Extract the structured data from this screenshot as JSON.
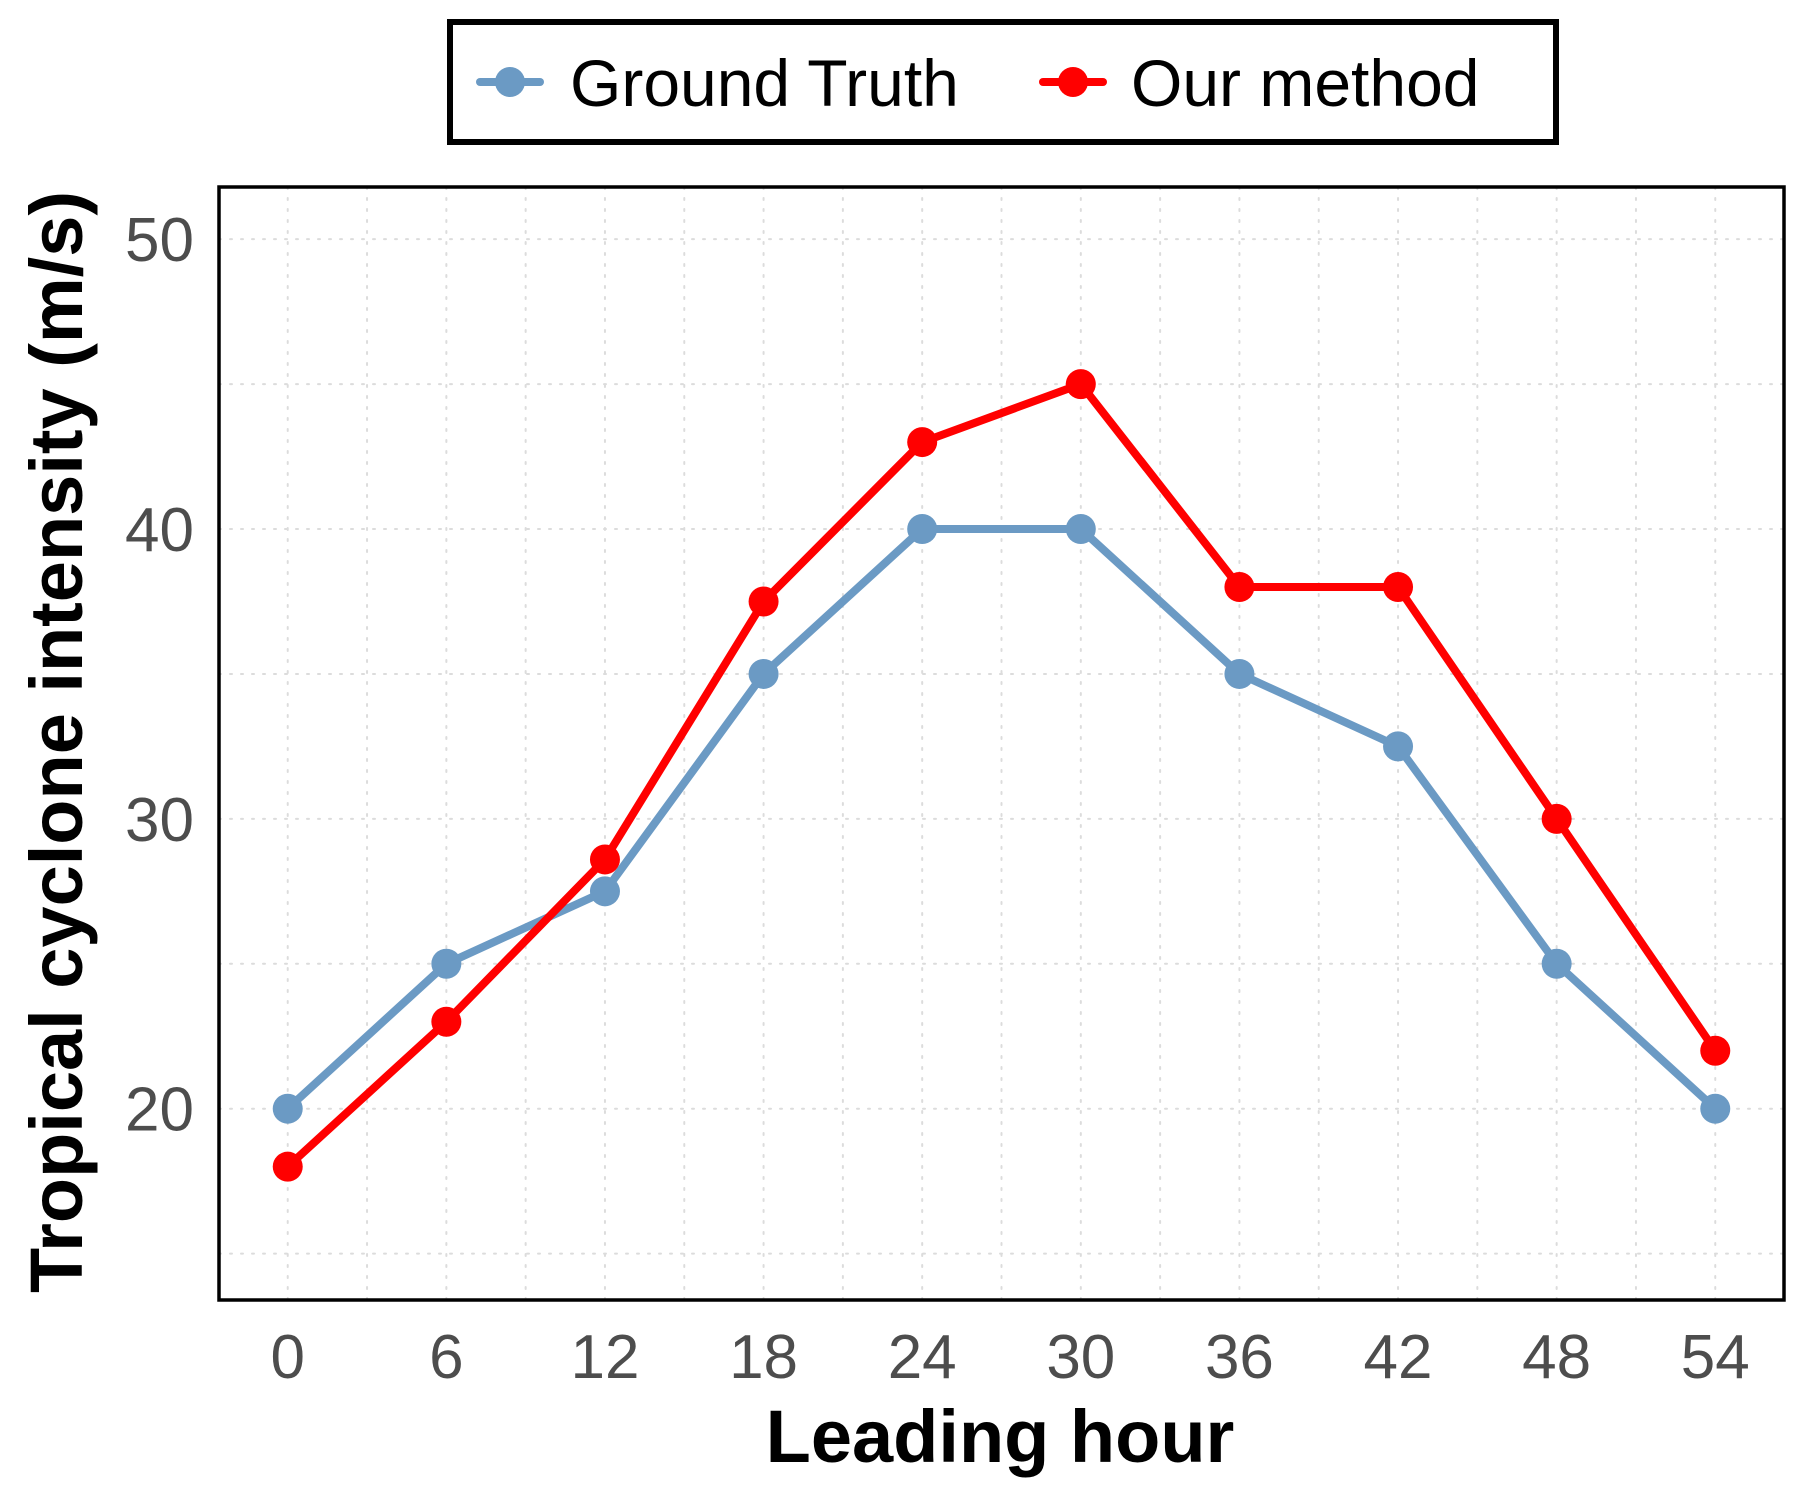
{
  "chart_data": {
    "type": "line",
    "xlabel": "Leading hour",
    "ylabel": "Tropical cyclone intensity (m/s)",
    "x": [
      0,
      6,
      12,
      18,
      24,
      30,
      36,
      42,
      48,
      54
    ],
    "x_ticks": [
      "0",
      "6",
      "12",
      "18",
      "24",
      "30",
      "36",
      "42",
      "48",
      "54"
    ],
    "y_ticks": [
      "20",
      "30",
      "40",
      "50"
    ],
    "xlim": [
      -2.6,
      56.6
    ],
    "ylim": [
      13.4,
      51.8
    ],
    "grid": true,
    "legend_position": "top",
    "series": [
      {
        "name": "Ground Truth",
        "color": "#6b9ac4",
        "values": [
          20,
          25,
          27.5,
          35,
          40,
          40,
          35,
          32.5,
          25,
          20
        ]
      },
      {
        "name": "Our method",
        "color": "#ff0000",
        "values": [
          18,
          23,
          28.6,
          37.5,
          43,
          45,
          38,
          38,
          30,
          22
        ]
      }
    ]
  }
}
